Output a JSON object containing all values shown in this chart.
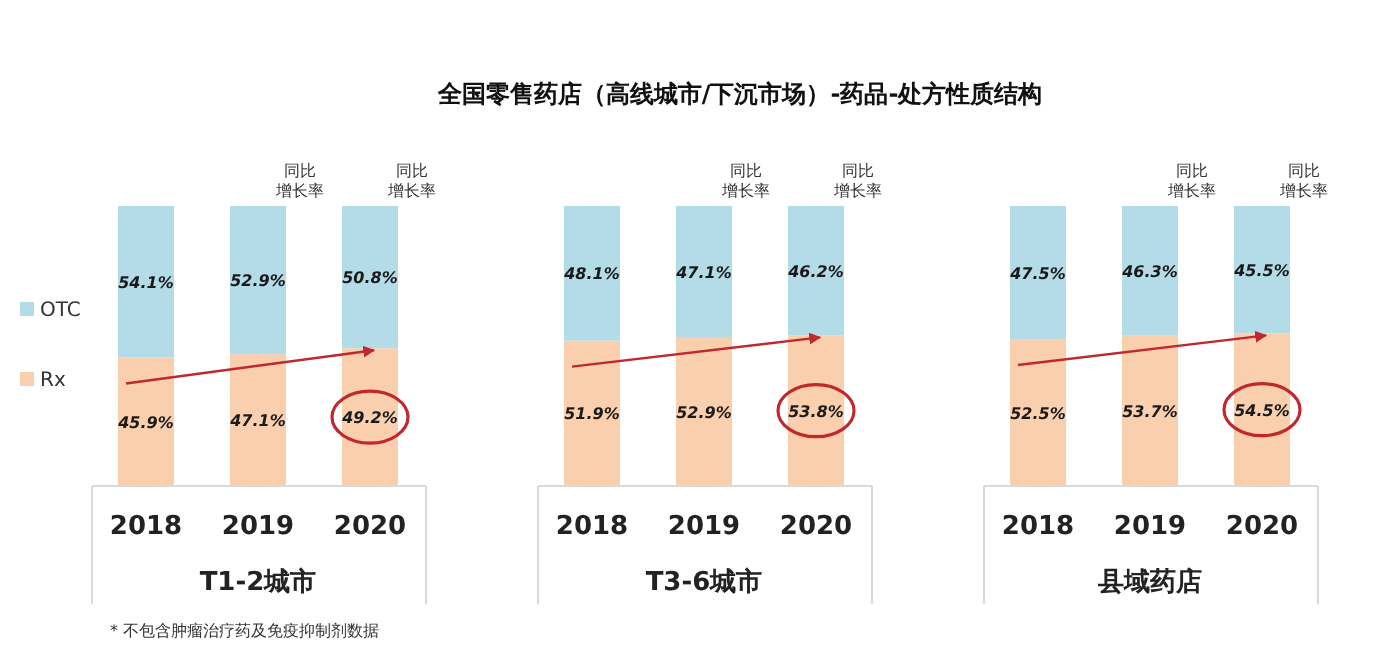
{
  "chart_data": [
    {
      "type": "bar",
      "stacked": true,
      "xlabel": "T1-2城市",
      "categories": [
        "2018",
        "2019",
        "2020"
      ],
      "legend": "left",
      "series": [
        {
          "name": "Rx",
          "color": "#f9cfae",
          "values": [
            45.9,
            47.1,
            49.2
          ],
          "value_labels": [
            "45.9%",
            "47.1%",
            "49.2%"
          ]
        },
        {
          "name": "OTC",
          "color": "#b3dbe8",
          "values": [
            54.1,
            52.9,
            50.8
          ],
          "value_labels": [
            "54.1%",
            "52.9%",
            "50.8%"
          ]
        }
      ],
      "annotations": [
        "同比增长率",
        "同比增长率",
        "* 不包含肿瘤治疗药及免疫抑制剂数据"
      ]
    },
    {
      "type": "bar",
      "stacked": true,
      "title": "全国零售药店（高线城市/下沉市场）-药品-处方性质结构",
      "xlabel": "T3-6城市",
      "categories": [
        "2018",
        "2019",
        "2020"
      ],
      "series": [
        {
          "color": "#f9cfae",
          "values": [
            51.9,
            52.9,
            53.8
          ],
          "value_labels": [
            "51.9%",
            "52.9%",
            "53.8%"
          ]
        },
        {
          "color": "#b3dbe8",
          "values": [
            48.1,
            47.1,
            46.2
          ],
          "value_labels": [
            "48.1%",
            "47.1%",
            "46.2%"
          ]
        }
      ],
      "annotations": [
        "同比增长率",
        "同比增长率"
      ]
    },
    {
      "type": "bar",
      "stacked": true,
      "xlabel": "县域药店",
      "categories": [
        "2018",
        "2019",
        "2020"
      ],
      "series": [
        {
          "color": "#f9cfae",
          "values": [
            52.5,
            53.7,
            54.5
          ],
          "value_labels": [
            "52.5%",
            "53.7%",
            "54.5%"
          ]
        },
        {
          "color": "#b3dbe8",
          "values": [
            47.5,
            46.3,
            45.5
          ],
          "value_labels": [
            "47.5%",
            "46.3%",
            "45.5%"
          ]
        }
      ],
      "annotations": [
        "同比增长率",
        "同比增长率"
      ]
    }
  ]
}
